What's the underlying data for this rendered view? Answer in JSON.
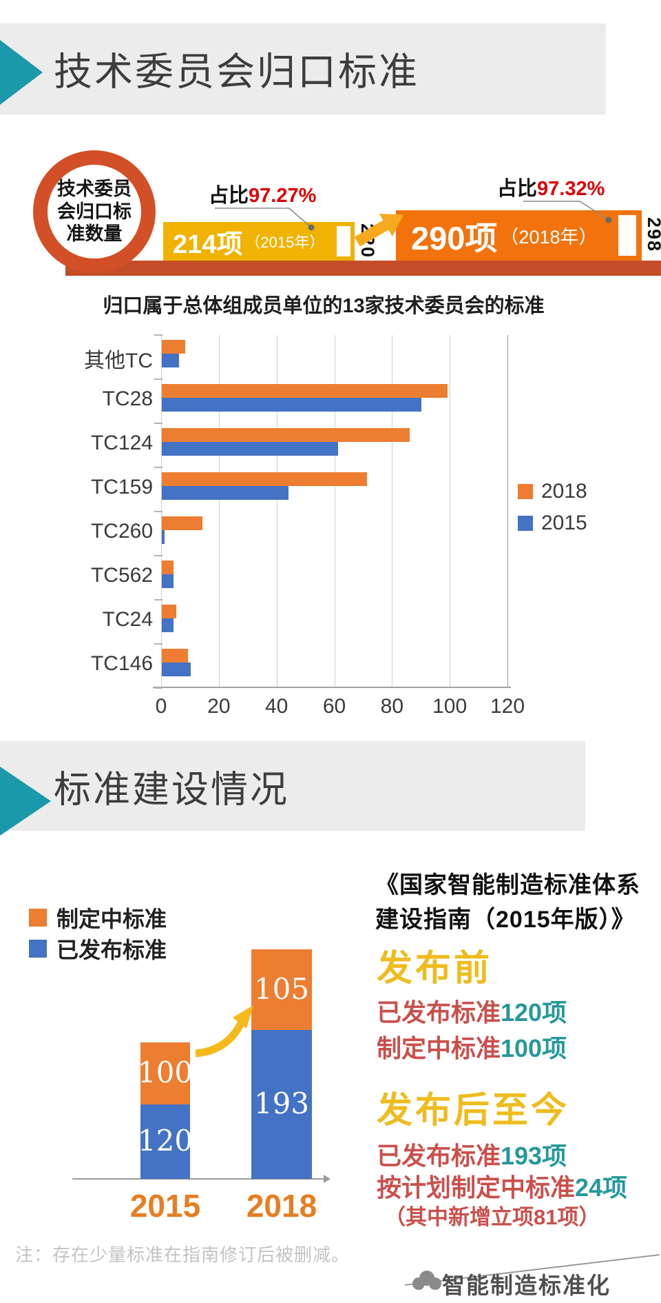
{
  "section1": {
    "title": "技术委员会归口标准",
    "infographic": {
      "circle_line1": "技术委员",
      "circle_line2": "会归口标",
      "circle_line3": "准数量",
      "ratio_2015_prefix": "占比",
      "ratio_2015_value": "97.27%",
      "ratio_2018_prefix": "占比",
      "ratio_2018_value": "97.32%",
      "bar_2015_count": "214项",
      "bar_2015_year": "（2015年）",
      "bar_2015_total": "220",
      "bar_2018_count": "290项",
      "bar_2018_year": "（2018年）",
      "bar_2018_total": "298"
    },
    "chart_title": "归口属于总体组成员单位的13家技术委员会的标准"
  },
  "chart_data": [
    {
      "type": "bar",
      "orientation": "horizontal",
      "title": "归口属于总体组成员单位的13家技术委员会的标准",
      "categories": [
        "其他TC",
        "TC28",
        "TC124",
        "TC159",
        "TC260",
        "TC562",
        "TC24",
        "TC146"
      ],
      "series": [
        {
          "name": "2018",
          "color": "#ed7d31",
          "values": [
            8,
            99,
            86,
            71,
            14,
            4,
            5,
            9
          ]
        },
        {
          "name": "2015",
          "color": "#4472c4",
          "values": [
            6,
            90,
            61,
            44,
            1,
            4,
            4,
            10
          ]
        }
      ],
      "xlim": [
        0,
        120
      ],
      "xticks": [
        0,
        20,
        40,
        60,
        80,
        100,
        120
      ],
      "grid": true,
      "legend_position": "right"
    },
    {
      "type": "stacked-bar",
      "categories": [
        "2015",
        "2018"
      ],
      "series": [
        {
          "name": "已发布标准",
          "color": "#4472c4",
          "values": [
            120,
            193
          ]
        },
        {
          "name": "制定中标准",
          "color": "#ed7d31",
          "values": [
            100,
            105
          ]
        }
      ],
      "legend_position": "top-left"
    }
  ],
  "section2": {
    "title": "标准建设情况",
    "legend": [
      {
        "label": "制定中标准",
        "color": "#ed7d31"
      },
      {
        "label": "已发布标准",
        "color": "#4472c4"
      }
    ],
    "right_panel": {
      "heading_line1": "《国家智能制造标准体系",
      "heading_line2": "建设指南（2015年版）》",
      "before_title": "发布前",
      "before_items": [
        {
          "label": "已发布标准",
          "value": "120项"
        },
        {
          "label": "制定中标准",
          "value": "100项"
        }
      ],
      "after_title": "发布后至今",
      "after_items": [
        {
          "label": "已发布标准",
          "value": "193项"
        },
        {
          "label": "按计划制定中标准",
          "value": "24项"
        }
      ],
      "after_note": "（其中新增立项81项）"
    }
  },
  "footer": {
    "note": "注：存在少量标准在指南修订后被删减。",
    "brand": "智能制造标准化"
  },
  "colors": {
    "teal_accent": "#1b98a9",
    "banner_bg": "#ececec",
    "ring_orange": "#d34f27",
    "gold_bar": "#f0b303",
    "orange_bar": "#f2730d",
    "base_strip": "#c44d28",
    "ratio_red": "#dd0000",
    "chart_orange": "#ed7d31",
    "chart_blue": "#4472c4",
    "heading_gold": "#eebc1e",
    "body_red": "#c9504c",
    "body_teal": "#27989b",
    "year_orange": "#e67e22"
  }
}
